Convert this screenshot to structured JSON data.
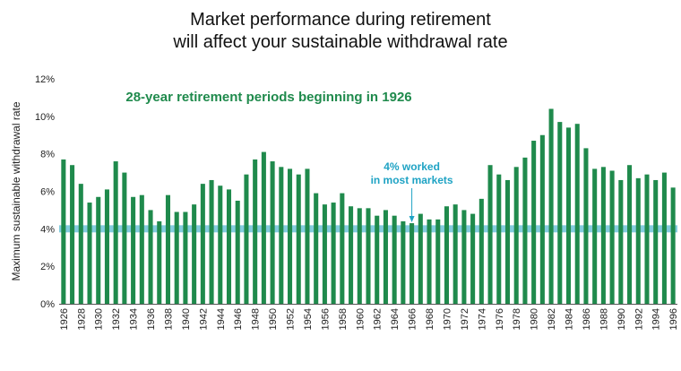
{
  "title_line1": "Market performance during retirement",
  "title_line2": "will affect your sustainable withdrawal rate",
  "chart_data": {
    "type": "bar",
    "subtitle": "28-year retirement periods beginning in 1926",
    "ylabel": "Maximum sustainable withdrawal rate",
    "xlabel": "",
    "ylim": [
      0,
      12
    ],
    "yticks": [
      "0%",
      "2%",
      "4%",
      "6%",
      "8%",
      "10%",
      "12%"
    ],
    "annotation": {
      "line1": "4% worked",
      "line2": "in most markets",
      "x": 1966
    },
    "reference_line": {
      "value": 4.0,
      "color": "#6fc3d8"
    },
    "bar_color": "#1f8a4c",
    "annotation_color": "#1fa3c4",
    "subtitle_color": "#1f8a4c",
    "categories": [
      1926,
      1927,
      1928,
      1929,
      1930,
      1931,
      1932,
      1933,
      1934,
      1935,
      1936,
      1937,
      1938,
      1939,
      1940,
      1941,
      1942,
      1943,
      1944,
      1945,
      1946,
      1947,
      1948,
      1949,
      1950,
      1951,
      1952,
      1953,
      1954,
      1955,
      1956,
      1957,
      1958,
      1959,
      1960,
      1961,
      1962,
      1963,
      1964,
      1965,
      1966,
      1967,
      1968,
      1969,
      1970,
      1971,
      1972,
      1973,
      1974,
      1975,
      1976,
      1977,
      1978,
      1979,
      1980,
      1981,
      1982,
      1983,
      1984,
      1985,
      1986,
      1987,
      1988,
      1989,
      1990,
      1991,
      1992,
      1993,
      1994,
      1995,
      1996
    ],
    "xtick_labels": [
      "1926",
      "1928",
      "1930",
      "1932",
      "1934",
      "1936",
      "1938",
      "1940",
      "1942",
      "1944",
      "1946",
      "1948",
      "1950",
      "1952",
      "1954",
      "1956",
      "1958",
      "1960",
      "1962",
      "1964",
      "1966",
      "1968",
      "1970",
      "1972",
      "1974",
      "1976",
      "1978",
      "1980",
      "1982",
      "1984",
      "1986",
      "1988",
      "1990",
      "1992",
      "1994",
      "1996"
    ],
    "values": [
      7.7,
      7.4,
      6.4,
      5.4,
      5.7,
      6.1,
      7.6,
      7.0,
      5.7,
      5.8,
      5.0,
      4.4,
      5.8,
      4.9,
      4.9,
      5.3,
      6.4,
      6.6,
      6.3,
      6.1,
      5.5,
      6.9,
      7.7,
      8.1,
      7.6,
      7.3,
      7.2,
      6.9,
      7.2,
      5.9,
      5.3,
      5.4,
      5.9,
      5.2,
      5.1,
      5.1,
      4.7,
      5.0,
      4.7,
      4.4,
      4.3,
      4.8,
      4.5,
      4.5,
      5.2,
      5.3,
      5.0,
      4.8,
      5.6,
      7.4,
      6.9,
      6.6,
      7.3,
      7.8,
      8.7,
      9.0,
      10.4,
      9.7,
      9.4,
      9.6,
      8.3,
      7.2,
      7.3,
      7.1,
      6.6,
      7.4,
      6.7,
      6.9,
      6.6,
      7.0,
      6.2
    ]
  }
}
